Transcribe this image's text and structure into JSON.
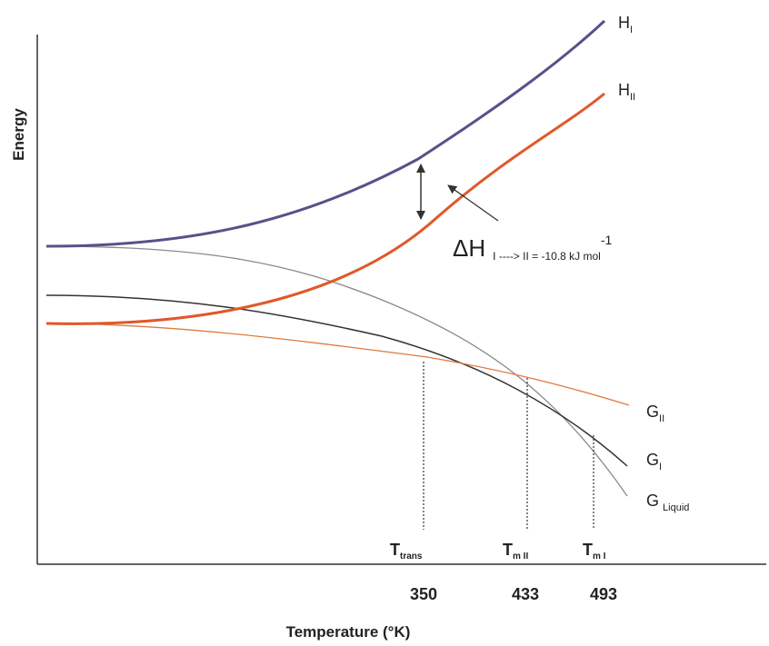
{
  "chart_data": {
    "type": "line",
    "xlabel": "Temperature (°K)",
    "ylabel": "Energy",
    "grid": false,
    "colors": {
      "H_I": "#5b4f8a",
      "H_II": "#e0582a",
      "G_I": "#333333",
      "G_II": "#e07a3c",
      "G_liquid": "#8a8a8a",
      "axis": "#333333"
    },
    "series": [
      {
        "key": "H_I",
        "name": "H",
        "sub": "I"
      },
      {
        "key": "H_II",
        "name": "H",
        "sub": "II"
      },
      {
        "key": "G_II",
        "name": "G",
        "sub": "II"
      },
      {
        "key": "G_I",
        "name": "G",
        "sub": "I"
      },
      {
        "key": "G_liquid",
        "name": "G",
        "sub": "Liquid"
      }
    ],
    "transitions": [
      {
        "key": "trans",
        "symbol": "T",
        "sub": "trans",
        "value": "350"
      },
      {
        "key": "mII",
        "symbol": "T",
        "sub": "m II",
        "value": "433"
      },
      {
        "key": "mI",
        "symbol": "T",
        "sub": "m I",
        "value": "493"
      }
    ],
    "annotation": {
      "delta": "Δ",
      "symbol": "H",
      "sub": "I ----> II = -10.8 kJ mol",
      "sup": "-1"
    }
  }
}
